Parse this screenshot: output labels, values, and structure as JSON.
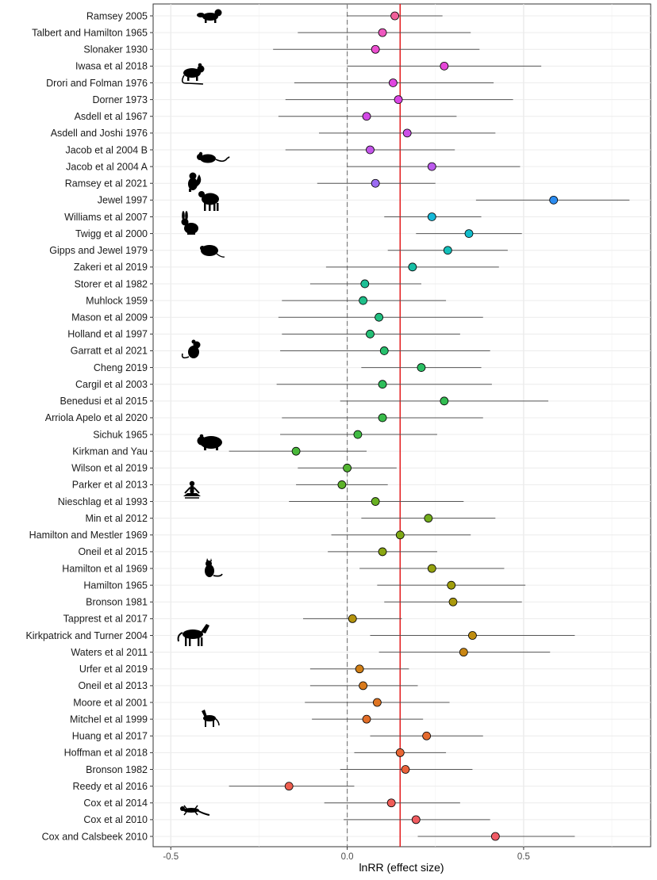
{
  "chart_data": {
    "type": "forest",
    "title": "",
    "xlabel": "lnRR (effect size)",
    "ylabel": "",
    "xlim": [
      -0.55,
      0.86
    ],
    "xticks": [
      -0.5,
      0.0,
      0.5
    ],
    "xtick_labels": [
      "-0.5",
      "0.0",
      "0.5"
    ],
    "grid": true,
    "null_line": 0,
    "pooled_estimate": 0.15,
    "colors": {
      "null_line": "#7f7f7f",
      "pooled_line": "#e31a1c",
      "ci": "#555555"
    },
    "rows": [
      {
        "study": "Ramsey 2005",
        "est": 0.135,
        "lo": 0.0,
        "hi": 0.27,
        "color": "#f0609a",
        "icon": "ferret-icon"
      },
      {
        "study": "Talbert and Hamilton 1965",
        "est": 0.1,
        "lo": -0.14,
        "hi": 0.35,
        "color": "#ee58bf",
        "icon": ""
      },
      {
        "study": "Slonaker 1930",
        "est": 0.08,
        "lo": -0.21,
        "hi": 0.375,
        "color": "#ec4fd0",
        "icon": ""
      },
      {
        "study": "Iwasa et al 2018",
        "est": 0.275,
        "lo": 0.0,
        "hi": 0.55,
        "color": "#e646d8",
        "icon": ""
      },
      {
        "study": "Drori and Folman 1976",
        "est": 0.13,
        "lo": -0.15,
        "hi": 0.415,
        "color": "#e046e0",
        "icon": "rat-icon"
      },
      {
        "study": "Dorner 1973",
        "est": 0.145,
        "lo": -0.175,
        "hi": 0.47,
        "color": "#da46e4",
        "icon": ""
      },
      {
        "study": "Asdell et al 1967",
        "est": 0.055,
        "lo": -0.195,
        "hi": 0.31,
        "color": "#d34ae6",
        "icon": ""
      },
      {
        "study": "Asdell and Joshi 1976",
        "est": 0.17,
        "lo": -0.08,
        "hi": 0.42,
        "color": "#cc50e8",
        "icon": ""
      },
      {
        "study": "Jacob et al 2004 B",
        "est": 0.065,
        "lo": -0.175,
        "hi": 0.305,
        "color": "#c455ea",
        "icon": ""
      },
      {
        "study": "Jacob et al 2004 A",
        "est": 0.24,
        "lo": 0.0,
        "hi": 0.49,
        "color": "#bb5aec",
        "icon": "mouse-icon"
      },
      {
        "study": "Ramsey et al 2021",
        "est": 0.08,
        "lo": -0.085,
        "hi": 0.25,
        "color": "#9b6cf2",
        "icon": "squirrel-icon"
      },
      {
        "study": "Jewel 1997",
        "est": 0.585,
        "lo": 0.365,
        "hi": 0.8,
        "color": "#2b8cf0",
        "icon": "sheep-icon"
      },
      {
        "study": "Williams et al 2007",
        "est": 0.24,
        "lo": 0.105,
        "hi": 0.38,
        "color": "#16b8d8",
        "icon": ""
      },
      {
        "study": "Twigg et al 2000",
        "est": 0.345,
        "lo": 0.195,
        "hi": 0.495,
        "color": "#12bccb",
        "icon": "rabbit-icon"
      },
      {
        "study": "Gipps and Jewel 1979",
        "est": 0.285,
        "lo": 0.115,
        "hi": 0.455,
        "color": "#13bfba",
        "icon": "vole-icon"
      },
      {
        "study": "Zakeri et al 2019",
        "est": 0.185,
        "lo": -0.06,
        "hi": 0.43,
        "color": "#18bfa6",
        "icon": ""
      },
      {
        "study": "Storer et al 1982",
        "est": 0.05,
        "lo": -0.105,
        "hi": 0.21,
        "color": "#1cbf96",
        "icon": ""
      },
      {
        "study": "Muhlock 1959",
        "est": 0.045,
        "lo": -0.185,
        "hi": 0.28,
        "color": "#1fbf8a",
        "icon": ""
      },
      {
        "study": "Mason et al 2009",
        "est": 0.09,
        "lo": -0.195,
        "hi": 0.385,
        "color": "#21bf80",
        "icon": ""
      },
      {
        "study": "Holland et al 1997",
        "est": 0.065,
        "lo": -0.185,
        "hi": 0.32,
        "color": "#24bf76",
        "icon": ""
      },
      {
        "study": "Garratt et al 2021",
        "est": 0.105,
        "lo": -0.19,
        "hi": 0.405,
        "color": "#27bf6c",
        "icon": "mouse-sitting-icon"
      },
      {
        "study": "Cheng 2019",
        "est": 0.21,
        "lo": 0.04,
        "hi": 0.38,
        "color": "#2abe63",
        "icon": ""
      },
      {
        "study": "Cargil et al 2003",
        "est": 0.1,
        "lo": -0.2,
        "hi": 0.41,
        "color": "#2ebd5a",
        "icon": ""
      },
      {
        "study": "Benedusi et al 2015",
        "est": 0.275,
        "lo": -0.02,
        "hi": 0.57,
        "color": "#33bc52",
        "icon": ""
      },
      {
        "study": "Arriola Apelo et al 2020",
        "est": 0.1,
        "lo": -0.185,
        "hi": 0.385,
        "color": "#39bb4a",
        "icon": ""
      },
      {
        "study": "Sichuk 1965",
        "est": 0.03,
        "lo": -0.19,
        "hi": 0.255,
        "color": "#40ba42",
        "icon": ""
      },
      {
        "study": "Kirkman and Yau",
        "est": -0.145,
        "lo": -0.335,
        "hi": 0.055,
        "color": "#49b83a",
        "icon": "hamster-icon"
      },
      {
        "study": "Wilson et al 2019",
        "est": 0.0,
        "lo": -0.14,
        "hi": 0.14,
        "color": "#53b532",
        "icon": ""
      },
      {
        "study": "Parker et al 2013",
        "est": -0.015,
        "lo": -0.145,
        "hi": 0.115,
        "color": "#5db22a",
        "icon": ""
      },
      {
        "study": "Nieschlag et al 1993",
        "est": 0.08,
        "lo": -0.165,
        "hi": 0.33,
        "color": "#68b022",
        "icon": "human-icon"
      },
      {
        "study": "Min et al 2012",
        "est": 0.23,
        "lo": 0.04,
        "hi": 0.42,
        "color": "#73ad1c",
        "icon": ""
      },
      {
        "study": "Hamilton and Mestler 1969",
        "est": 0.15,
        "lo": -0.045,
        "hi": 0.35,
        "color": "#7fa916",
        "icon": ""
      },
      {
        "study": "Oneil et al 2015",
        "est": 0.1,
        "lo": -0.055,
        "hi": 0.255,
        "color": "#8aa612",
        "icon": ""
      },
      {
        "study": "Hamilton et al 1969",
        "est": 0.24,
        "lo": 0.035,
        "hi": 0.445,
        "color": "#95a20f",
        "icon": "cat-icon"
      },
      {
        "study": "Hamilton 1965",
        "est": 0.295,
        "lo": 0.085,
        "hi": 0.505,
        "color": "#a09e0c",
        "icon": ""
      },
      {
        "study": "Bronson 1981",
        "est": 0.3,
        "lo": 0.105,
        "hi": 0.495,
        "color": "#aa990c",
        "icon": ""
      },
      {
        "study": "Tapprest et al 2017",
        "est": 0.015,
        "lo": -0.125,
        "hi": 0.155,
        "color": "#b4930d",
        "icon": ""
      },
      {
        "study": "Kirkpatrick and Turner 2004",
        "est": 0.355,
        "lo": 0.065,
        "hi": 0.645,
        "color": "#bf8d10",
        "icon": "horse-icon"
      },
      {
        "study": "Waters et al 2011",
        "est": 0.33,
        "lo": 0.09,
        "hi": 0.575,
        "color": "#c98613",
        "icon": ""
      },
      {
        "study": "Urfer et al 2019",
        "est": 0.035,
        "lo": -0.105,
        "hi": 0.175,
        "color": "#d17f16",
        "icon": ""
      },
      {
        "study": "Oneil et al 2013",
        "est": 0.045,
        "lo": -0.105,
        "hi": 0.2,
        "color": "#d87a1c",
        "icon": ""
      },
      {
        "study": "Moore et al 2001",
        "est": 0.085,
        "lo": -0.12,
        "hi": 0.29,
        "color": "#de7422",
        "icon": ""
      },
      {
        "study": "Mitchel et al 1999",
        "est": 0.055,
        "lo": -0.1,
        "hi": 0.215,
        "color": "#e26e28",
        "icon": "dog-icon"
      },
      {
        "study": "Huang et al 2017",
        "est": 0.225,
        "lo": 0.065,
        "hi": 0.385,
        "color": "#e56a2e",
        "icon": ""
      },
      {
        "study": "Hoffman et al 2018",
        "est": 0.15,
        "lo": 0.02,
        "hi": 0.28,
        "color": "#e86634",
        "icon": ""
      },
      {
        "study": "Bronson 1982",
        "est": 0.165,
        "lo": -0.02,
        "hi": 0.355,
        "color": "#ea623b",
        "icon": ""
      },
      {
        "study": "Reedy et al 2016",
        "est": -0.165,
        "lo": -0.335,
        "hi": 0.02,
        "color": "#ee5e4f",
        "icon": ""
      },
      {
        "study": "Cox et al 2014",
        "est": 0.125,
        "lo": -0.065,
        "hi": 0.32,
        "color": "#ef5d58",
        "icon": "lizard-icon"
      },
      {
        "study": "Cox et al 2010",
        "est": 0.195,
        "lo": -0.01,
        "hi": 0.405,
        "color": "#f05c60",
        "icon": ""
      },
      {
        "study": "Cox and Calsbeek 2010",
        "est": 0.42,
        "lo": 0.2,
        "hi": 0.645,
        "color": "#f05b66",
        "icon": ""
      }
    ]
  }
}
